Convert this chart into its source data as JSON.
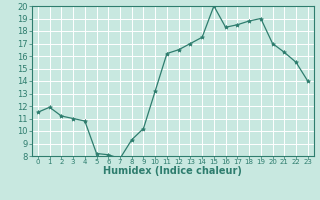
{
  "x": [
    0,
    1,
    2,
    3,
    4,
    5,
    6,
    7,
    8,
    9,
    10,
    11,
    12,
    13,
    14,
    15,
    16,
    17,
    18,
    19,
    20,
    21,
    22,
    23
  ],
  "y": [
    11.5,
    11.9,
    11.2,
    11.0,
    10.8,
    8.2,
    8.1,
    7.8,
    9.3,
    10.2,
    13.2,
    16.2,
    16.5,
    17.0,
    17.5,
    20.0,
    18.3,
    18.5,
    18.8,
    19.0,
    17.0,
    16.3,
    15.5,
    14.0
  ],
  "line_color": "#2e7d6e",
  "marker": "*",
  "marker_size": 3,
  "background_color": "#c8e8e0",
  "grid_color": "#ffffff",
  "xlabel": "Humidex (Indice chaleur)",
  "xlabel_fontsize": 7,
  "tick_fontsize": 6,
  "xlim": [
    -0.5,
    23.5
  ],
  "ylim": [
    8,
    20
  ],
  "yticks": [
    8,
    9,
    10,
    11,
    12,
    13,
    14,
    15,
    16,
    17,
    18,
    19,
    20
  ],
  "xticks": [
    0,
    1,
    2,
    3,
    4,
    5,
    6,
    7,
    8,
    9,
    10,
    11,
    12,
    13,
    14,
    15,
    16,
    17,
    18,
    19,
    20,
    21,
    22,
    23
  ]
}
